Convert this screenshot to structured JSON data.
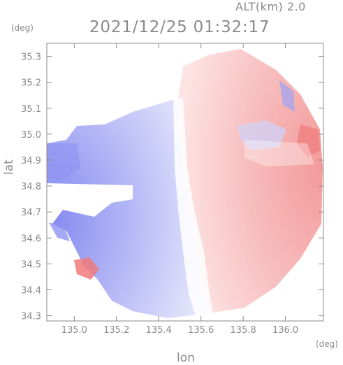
{
  "header": {
    "altitude_label": "ALT(km) 2.0",
    "timestamp": "2021/12/25 01:32:17"
  },
  "axes": {
    "y_unit": "(deg)",
    "x_unit": "(deg)",
    "y_title": "lat",
    "x_title": "lon"
  },
  "chart_data": {
    "type": "heatmap",
    "title": "2021/12/25 01:32:17",
    "subtitle": "ALT(km) 2.0",
    "xlabel": "lon",
    "ylabel": "lat",
    "x_unit": "(deg)",
    "y_unit": "(deg)",
    "xlim": [
      134.87,
      136.18
    ],
    "ylim": [
      34.28,
      35.35
    ],
    "x_ticks": [
      135.0,
      135.2,
      135.4,
      135.6,
      135.8,
      136.0
    ],
    "x_tick_labels": [
      "135.0",
      "135.2",
      "135.4",
      "135.6",
      "135.8",
      "136.0"
    ],
    "y_ticks": [
      34.3,
      34.4,
      34.5,
      34.6,
      34.7,
      34.8,
      34.9,
      35.0,
      35.1,
      35.2,
      35.3
    ],
    "y_tick_labels": [
      "34.3",
      "34.4",
      "34.5",
      "34.6",
      "34.7",
      "34.8",
      "34.9",
      "35.0",
      "35.1",
      "35.2",
      "35.3"
    ],
    "grid": false,
    "radar_center": [
      135.61,
      34.83
    ],
    "colors": {
      "toward": "#7d82ef",
      "away": "#f28585",
      "zero": "#ffffff",
      "axis": "#8a8a8a"
    }
  }
}
